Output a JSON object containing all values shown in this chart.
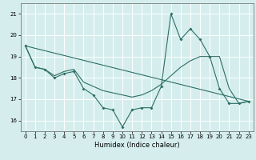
{
  "xlabel": "Humidex (Indice chaleur)",
  "background_color": "#d5eeed",
  "grid_color": "#b8d8d8",
  "line_color": "#2d6e65",
  "xlim": [
    -0.5,
    23.5
  ],
  "ylim": [
    15.5,
    21.5
  ],
  "yticks": [
    16,
    17,
    18,
    19,
    20,
    21
  ],
  "xticks": [
    0,
    1,
    2,
    3,
    4,
    5,
    6,
    7,
    8,
    9,
    10,
    11,
    12,
    13,
    14,
    15,
    16,
    17,
    18,
    19,
    20,
    21,
    22,
    23
  ],
  "series_jagged": {
    "x": [
      0,
      1,
      2,
      3,
      4,
      5,
      6,
      7,
      8,
      9,
      10,
      11,
      12,
      13,
      14,
      15,
      16,
      17,
      18,
      19,
      20,
      21,
      22,
      23
    ],
    "y": [
      19.5,
      18.5,
      18.4,
      18.0,
      18.2,
      18.3,
      17.5,
      17.2,
      16.6,
      16.5,
      15.7,
      16.5,
      16.6,
      16.6,
      17.6,
      21.0,
      19.8,
      20.3,
      19.8,
      19.0,
      17.5,
      16.8,
      16.8,
      16.9
    ]
  },
  "series_smooth": {
    "x": [
      0,
      1,
      2,
      3,
      4,
      5,
      6,
      7,
      8,
      9,
      10,
      11,
      12,
      13,
      14,
      15,
      16,
      17,
      18,
      19,
      20,
      21,
      22,
      23
    ],
    "y": [
      19.5,
      18.5,
      18.4,
      18.1,
      18.3,
      18.4,
      17.8,
      17.6,
      17.4,
      17.3,
      17.2,
      17.1,
      17.2,
      17.4,
      17.7,
      18.1,
      18.5,
      18.8,
      19.0,
      19.0,
      19.0,
      17.5,
      16.8,
      16.9
    ]
  },
  "series_straight": {
    "x": [
      0,
      23
    ],
    "y": [
      19.5,
      16.9
    ]
  }
}
